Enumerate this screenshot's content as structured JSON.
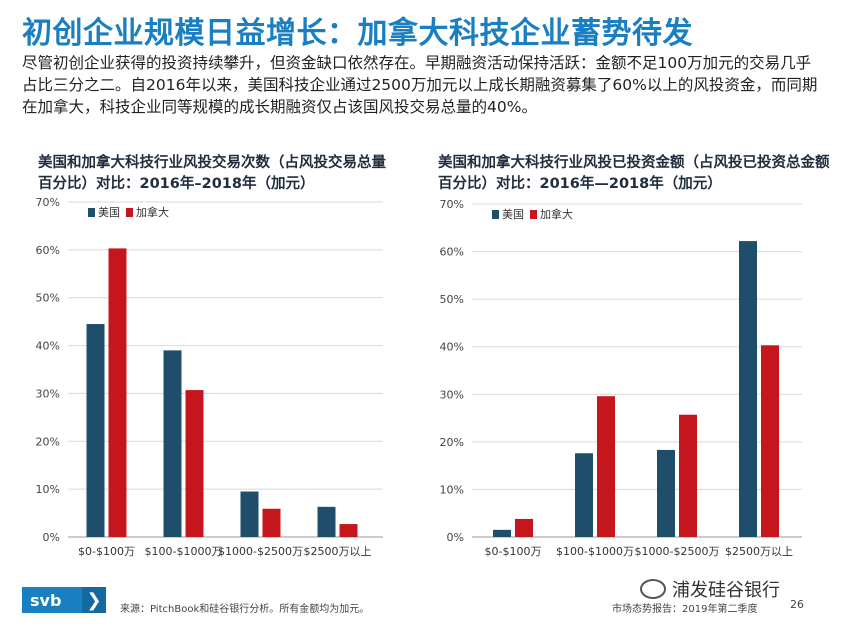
{
  "title": "初创企业规模日益增长：加拿大科技企业蓄势待发",
  "intro": "尽管初创企业获得的投资持续攀升，但资金缺口依然存在。早期融资活动保持活跃：金额不足100万加元的交易几乎占比三分之二。自2016年以来，美国科技企业通过2500万加元以上成长期融资募集了60%以上的风投资金，而同期在加拿大，科技企业同等规模的成长期融资仅占该国风投交易总量的40%。",
  "chart_data": [
    {
      "type": "bar",
      "title": "美国和加拿大科技行业风投交易次数（占风投交易总量百分比）对比：2016年–2018年（加元）",
      "categories": [
        "$0-$100万",
        "$100-$1000万",
        "$1000-$2500万",
        "$2500万以上"
      ],
      "series": [
        {
          "name": "美国",
          "color": "#1f4e6a",
          "values": [
            44.5,
            39,
            9.5,
            6.3
          ]
        },
        {
          "name": "加拿大",
          "color": "#c4161c",
          "values": [
            60.3,
            30.7,
            5.9,
            2.7
          ]
        }
      ],
      "yticks": [
        "0%",
        "10%",
        "20%",
        "30%",
        "40%",
        "50%",
        "60%",
        "70%"
      ],
      "ylim": [
        0,
        70
      ],
      "legend": "top-left"
    },
    {
      "type": "bar",
      "title": "美国和加拿大科技行业风投已投资金额（占风投已投资总金额百分比）对比：2016年—2018年（加元）",
      "categories": [
        "$0-$100万",
        "$100-$1000万",
        "$1000-$2500万",
        "$2500万以上"
      ],
      "series": [
        {
          "name": "美国",
          "color": "#1f4e6a",
          "values": [
            1.5,
            17.6,
            18.3,
            62.2
          ]
        },
        {
          "name": "加拿大",
          "color": "#c4161c",
          "values": [
            3.8,
            29.6,
            25.7,
            40.3
          ]
        }
      ],
      "yticks": [
        "0%",
        "10%",
        "20%",
        "30%",
        "40%",
        "50%",
        "60%",
        "70%"
      ],
      "ylim": [
        0,
        70
      ],
      "legend": "top-left"
    }
  ],
  "footer": {
    "logo": "svb",
    "logo_chevron": "❯",
    "source": "来源：PitchBook和硅谷银行分析。所有金额均为加元。",
    "report": "市场态势报告：2019年第二季度",
    "page": "26",
    "watermark": "浦发硅谷银行"
  }
}
